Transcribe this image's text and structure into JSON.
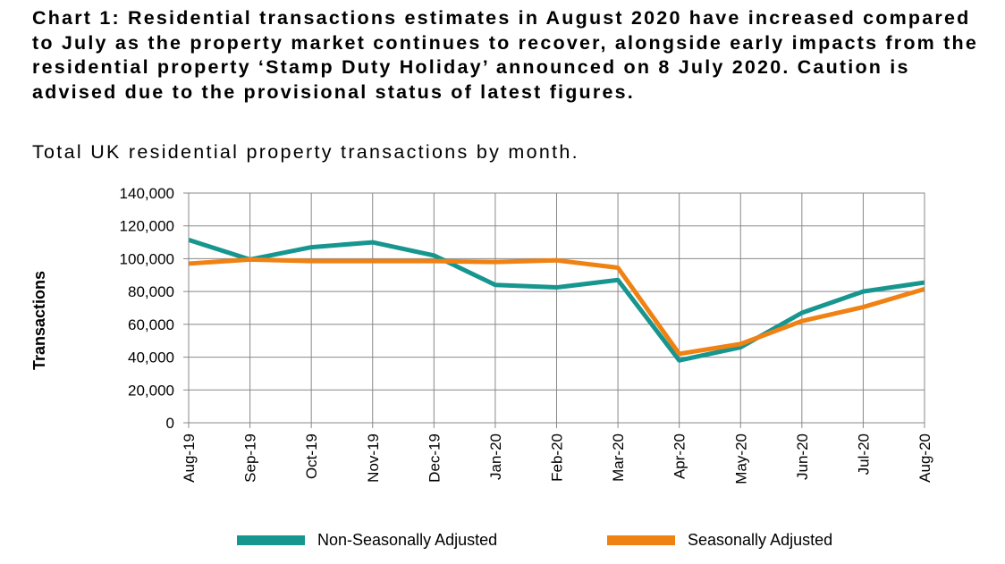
{
  "title": "Chart 1: Residential transactions estimates in August 2020 have increased compared to July as the property market continues to recover, alongside early impacts from the residential property ‘Stamp Duty Holiday’ announced on 8 July 2020. Caution is advised due to the provisional status of latest figures.",
  "subtitle": "Total UK residential property transactions by month.",
  "chart_data": {
    "type": "line",
    "categories": [
      "Aug-19",
      "Sep-19",
      "Oct-19",
      "Nov-19",
      "Dec-19",
      "Jan-20",
      "Feb-20",
      "Mar-20",
      "Apr-20",
      "May-20",
      "Jun-20",
      "Jul-20",
      "Aug-20"
    ],
    "series": [
      {
        "name": "Non-Seasonally Adjusted",
        "color": "#17968f",
        "values": [
          111500,
          99500,
          107000,
          110000,
          102000,
          84000,
          82500,
          87000,
          38000,
          46000,
          67000,
          80000,
          85500
        ]
      },
      {
        "name": "Seasonally Adjusted",
        "color": "#f08113",
        "values": [
          97000,
          99500,
          98500,
          98500,
          98500,
          98000,
          99000,
          94500,
          42000,
          48000,
          62000,
          70500,
          81500
        ]
      }
    ],
    "ylabel": "Transactions",
    "xlabel": "",
    "ylim": [
      0,
      140000
    ],
    "yticks": [
      0,
      20000,
      40000,
      60000,
      80000,
      100000,
      120000,
      140000
    ],
    "ytick_labels": [
      "0",
      "20,000",
      "40,000",
      "60,000",
      "80,000",
      "100,000",
      "120,000",
      "140,000"
    ],
    "grid": "horizontal",
    "legend_position": "bottom"
  }
}
